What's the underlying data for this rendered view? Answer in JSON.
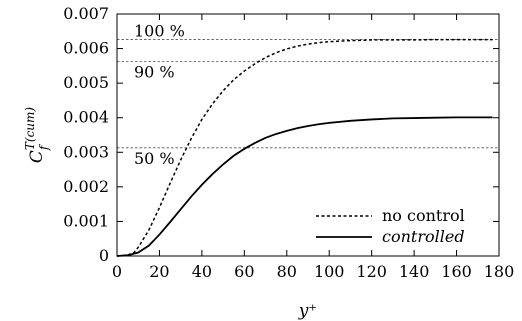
{
  "chart_data": {
    "type": "line",
    "title": "",
    "xlabel": "y⁺",
    "ylabel_base": "C",
    "ylabel_sup": "T(cum)",
    "ylabel_sub": "f",
    "xlim": [
      0,
      180
    ],
    "ylim": [
      0,
      0.007
    ],
    "xticks": [
      0,
      20,
      40,
      60,
      80,
      100,
      120,
      140,
      160,
      180
    ],
    "yticks": [
      0,
      0.001,
      0.002,
      0.003,
      0.004,
      0.005,
      0.006,
      0.007
    ],
    "xtick_labels": [
      "0",
      "20",
      "40",
      "60",
      "80",
      "100",
      "120",
      "140",
      "160",
      "180"
    ],
    "ytick_labels": [
      "0",
      "0.001",
      "0.002",
      "0.003",
      "0.004",
      "0.005",
      "0.006",
      "0.007"
    ],
    "grid": false,
    "legend_position": "bottom-right",
    "reference_lines": [
      {
        "label": "100 %",
        "y": 0.00626,
        "label_x": 8
      },
      {
        "label": "90 %",
        "y": 0.00563,
        "label_x": 8
      },
      {
        "label": "50 %",
        "y": 0.00313,
        "label_x": 8
      }
    ],
    "series": [
      {
        "name": "no control",
        "style": "dashed",
        "x": [
          0,
          5,
          8,
          10,
          15,
          20,
          25,
          30,
          35,
          40,
          45,
          50,
          55,
          60,
          65,
          70,
          75,
          80,
          85,
          90,
          95,
          100,
          110,
          120,
          130,
          140,
          150,
          160,
          170,
          177
        ],
        "y": [
          0,
          3e-05,
          0.0001,
          0.00025,
          0.00075,
          0.0014,
          0.0021,
          0.00278,
          0.0034,
          0.00395,
          0.0044,
          0.00478,
          0.0051,
          0.00535,
          0.00556,
          0.00574,
          0.00588,
          0.00599,
          0.00607,
          0.00613,
          0.00617,
          0.0062,
          0.00623,
          0.00625,
          0.00625,
          0.00625,
          0.00626,
          0.00626,
          0.00626,
          0.00626
        ]
      },
      {
        "name": "controlled",
        "style": "solid",
        "x": [
          0,
          5,
          10,
          15,
          20,
          25,
          30,
          35,
          40,
          45,
          50,
          55,
          60,
          65,
          70,
          75,
          80,
          85,
          90,
          95,
          100,
          110,
          120,
          130,
          140,
          150,
          160,
          170,
          177
        ],
        "y": [
          0,
          2e-05,
          0.0001,
          0.0003,
          0.00062,
          0.00098,
          0.00135,
          0.00172,
          0.00206,
          0.00237,
          0.00265,
          0.0029,
          0.0031,
          0.00327,
          0.00342,
          0.00353,
          0.00362,
          0.0037,
          0.00376,
          0.00381,
          0.00385,
          0.00391,
          0.00395,
          0.00398,
          0.00399,
          0.004,
          0.00401,
          0.00401,
          0.00401
        ]
      }
    ]
  }
}
